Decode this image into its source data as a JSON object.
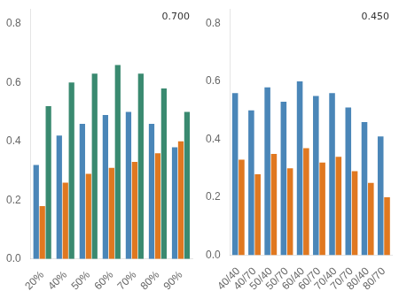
{
  "chart_data": [
    {
      "type": "bar",
      "annotation": "0.700",
      "categories": [
        "20%",
        "40%",
        "50%",
        "60%",
        "70%",
        "80%",
        "90%"
      ],
      "series": [
        {
          "color": "#4a86b8",
          "values": [
            0.32,
            0.42,
            0.46,
            0.49,
            0.5,
            0.46,
            0.38
          ]
        },
        {
          "color": "#e07820",
          "values": [
            0.18,
            0.26,
            0.29,
            0.31,
            0.33,
            0.36,
            0.4
          ]
        },
        {
          "color": "#3a8a70",
          "values": [
            0.52,
            0.6,
            0.63,
            0.66,
            0.63,
            0.58,
            0.5
          ]
        }
      ],
      "ylim": [
        0,
        0.85
      ],
      "yticks": [
        {
          "value": 0,
          "label": "0.0"
        },
        0.2,
        0.4,
        0.6,
        0.8
      ],
      "grid": false
    },
    {
      "type": "bar",
      "annotation": "0.450",
      "categories": [
        "40/40",
        "40/70",
        "50/40",
        "50/70",
        "60/40",
        "60/70",
        "70/40",
        "70/70",
        "80/40",
        "80/70"
      ],
      "series": [
        {
          "color": "#4a86b8",
          "values": [
            0.56,
            0.5,
            0.58,
            0.53,
            0.6,
            0.55,
            0.56,
            0.51,
            0.46,
            0.41
          ]
        },
        {
          "color": "#e07820",
          "values": [
            0.33,
            0.28,
            0.35,
            0.3,
            0.37,
            0.32,
            0.34,
            0.29,
            0.25,
            0.2
          ]
        }
      ],
      "ylim": [
        0,
        0.85
      ],
      "yticks": [
        {
          "value": 0,
          "label": "0.0"
        },
        0.2,
        0.4,
        0.6,
        0.8
      ],
      "grid": false
    }
  ]
}
